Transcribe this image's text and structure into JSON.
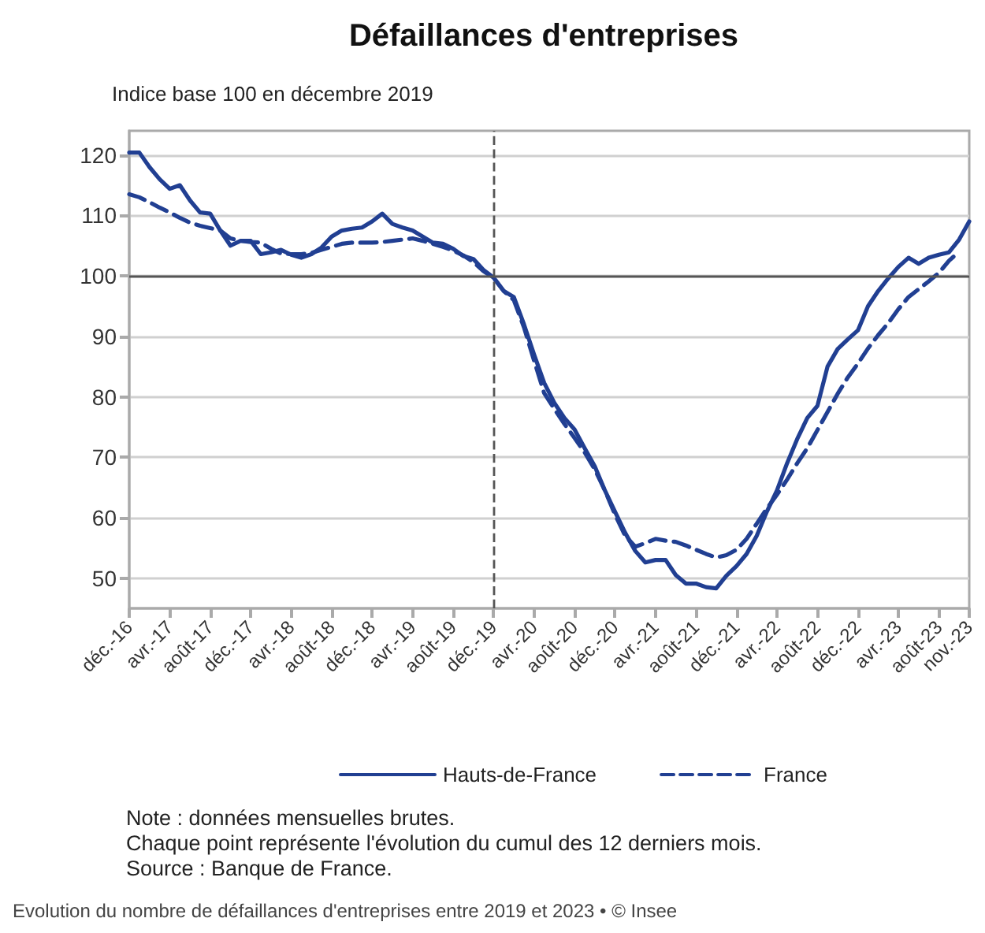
{
  "chart_data": {
    "type": "line",
    "title": "Défaillances d'entreprises",
    "subtitle": "Indice base 100 en décembre 2019",
    "categories": [
      "déc.-16",
      null,
      null,
      null,
      "avr.-17",
      null,
      null,
      null,
      "août-17",
      null,
      null,
      null,
      "déc.-17",
      null,
      null,
      null,
      "avr.-18",
      null,
      null,
      null,
      "août-18",
      null,
      null,
      null,
      "déc.-18",
      null,
      null,
      null,
      "avr.-19",
      null,
      null,
      null,
      "août-19",
      null,
      null,
      null,
      "déc.-19",
      null,
      null,
      null,
      "avr.-20",
      null,
      null,
      null,
      "août-20",
      null,
      null,
      null,
      "déc.-20",
      null,
      null,
      null,
      "avr.-21",
      null,
      null,
      null,
      "août-21",
      null,
      null,
      null,
      "déc.-21",
      null,
      null,
      null,
      "avr.-22",
      null,
      null,
      null,
      "août-22",
      null,
      null,
      null,
      "déc.-22",
      null,
      null,
      null,
      "avr.-23",
      null,
      null,
      null,
      "août-23",
      null,
      null,
      "nov.-23"
    ],
    "series": [
      {
        "name": "Hauts-de-France",
        "color": "#213f92",
        "line_style": "solid",
        "values": [
          120.4,
          120.4,
          118,
          116,
          114.4,
          115,
          112.5,
          110.5,
          110.3,
          107.5,
          105,
          105.8,
          105.8,
          103.6,
          103.9,
          104.3,
          103.5,
          103,
          103.6,
          104.7,
          106.5,
          107.5,
          107.8,
          108,
          109,
          110.3,
          108.6,
          108,
          107.5,
          106.5,
          105.5,
          105.3,
          104.5,
          103.3,
          102.8,
          101,
          99.7,
          97.5,
          96.5,
          92,
          87,
          82.3,
          79,
          76.5,
          74.6,
          71.5,
          68.5,
          64.5,
          61,
          57.5,
          54.5,
          52.6,
          53,
          53,
          50.5,
          49.1,
          49.1,
          48.5,
          48.3,
          50.4,
          52,
          54,
          57,
          61,
          64.5,
          69,
          73,
          76.5,
          78.5,
          85,
          87.9,
          89.5,
          91,
          95,
          97.5,
          99.6,
          101.5,
          103,
          102,
          103,
          103.5,
          103.9,
          106,
          109
        ]
      },
      {
        "name": "France",
        "color": "#213f92",
        "line_style": "dashed",
        "values": [
          113.5,
          113,
          112.2,
          111.3,
          110.5,
          109.6,
          108.8,
          108.3,
          107.9,
          107.5,
          106.2,
          105.8,
          105.6,
          105.5,
          104.5,
          103.7,
          103.6,
          103.6,
          103.8,
          104.3,
          104.8,
          105.3,
          105.5,
          105.5,
          105.5,
          105.6,
          105.8,
          106,
          106.2,
          105.8,
          105.3,
          104.8,
          104.2,
          103.4,
          102.3,
          100.8,
          99.7,
          97.5,
          96,
          91.5,
          86,
          80.6,
          78,
          75.5,
          73.2,
          70.8,
          68,
          64.5,
          60.5,
          57,
          55.2,
          55.8,
          56.5,
          56.2,
          56,
          55.4,
          54.7,
          54,
          53.4,
          53.8,
          54.7,
          56.5,
          59,
          61.5,
          63.8,
          66.3,
          69,
          71.5,
          74.5,
          77.5,
          80.5,
          83.2,
          85.5,
          88,
          90.2,
          92.2,
          94.5,
          96.5,
          97.8,
          99.1,
          100.5,
          102.5,
          104,
          null
        ]
      }
    ],
    "ylim": [
      45,
      124
    ],
    "yticks": [
      50,
      60,
      70,
      80,
      90,
      100,
      110,
      120
    ],
    "grid": "y",
    "legend": "bottom",
    "marker": "none",
    "ref_lines": [
      {
        "axis": "y",
        "value": 100,
        "color": "#555555",
        "line_style": "solid"
      },
      {
        "axis": "x",
        "value": "déc.-19",
        "color": "#555555",
        "line_style": "dashed"
      }
    ],
    "annotations": [
      "Note : données mensuelles brutes.",
      "Chaque point représente l'évolution du cumul des 12 derniers mois.",
      "Source : Banque de France.",
      "Evolution du nombre de défaillances d'entreprises entre 2019 et 2023 • © Insee"
    ]
  }
}
